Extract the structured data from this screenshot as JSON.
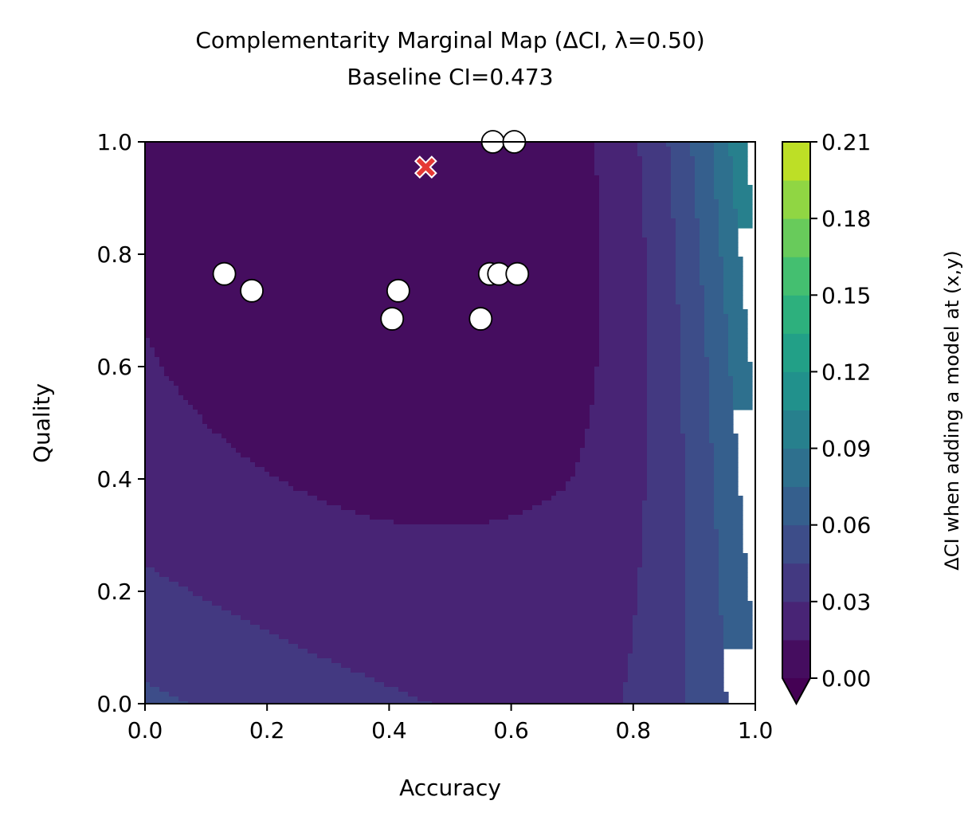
{
  "chart_data": {
    "type": "heatmap",
    "title": "Complementarity Marginal Map (ΔCI, λ=0.50)",
    "subtitle": "Baseline CI=0.473",
    "xlabel": "Accuracy",
    "ylabel": "Quality",
    "xlim": [
      0.0,
      1.0
    ],
    "ylim": [
      0.0,
      1.0
    ],
    "x_ticks": [
      "0.0",
      "0.2",
      "0.4",
      "0.6",
      "0.8",
      "1.0"
    ],
    "y_ticks": [
      "0.0",
      "0.2",
      "0.4",
      "0.6",
      "0.8",
      "1.0"
    ],
    "grid": false,
    "colormap": "viridis",
    "colorbar": {
      "label": "ΔCI when adding a model at (x,y)",
      "min": 0.0,
      "max": 0.21,
      "ticks": [
        "0.00",
        "0.03",
        "0.06",
        "0.09",
        "0.12",
        "0.15",
        "0.18",
        "0.21"
      ],
      "levels": 15,
      "extend": "min"
    },
    "existing_models": [
      {
        "x": 0.13,
        "y": 0.765
      },
      {
        "x": 0.175,
        "y": 0.735
      },
      {
        "x": 0.405,
        "y": 0.685
      },
      {
        "x": 0.415,
        "y": 0.735
      },
      {
        "x": 0.55,
        "y": 0.685
      },
      {
        "x": 0.565,
        "y": 0.765
      },
      {
        "x": 0.58,
        "y": 0.765
      },
      {
        "x": 0.61,
        "y": 0.765
      },
      {
        "x": 0.57,
        "y": 1.0
      },
      {
        "x": 0.605,
        "y": 1.0
      }
    ],
    "best_candidate": {
      "x": 0.46,
      "y": 0.955,
      "marker": "X",
      "color": "#e53935"
    },
    "colors": {
      "viridis": [
        "#440154",
        "#482475",
        "#414487",
        "#355f8d",
        "#2a788e",
        "#21918c",
        "#22a884",
        "#44bf70",
        "#7ad151",
        "#bddf26",
        "#fde725"
      ],
      "point_fill": "#ffffff",
      "point_edge": "#000000"
    }
  }
}
